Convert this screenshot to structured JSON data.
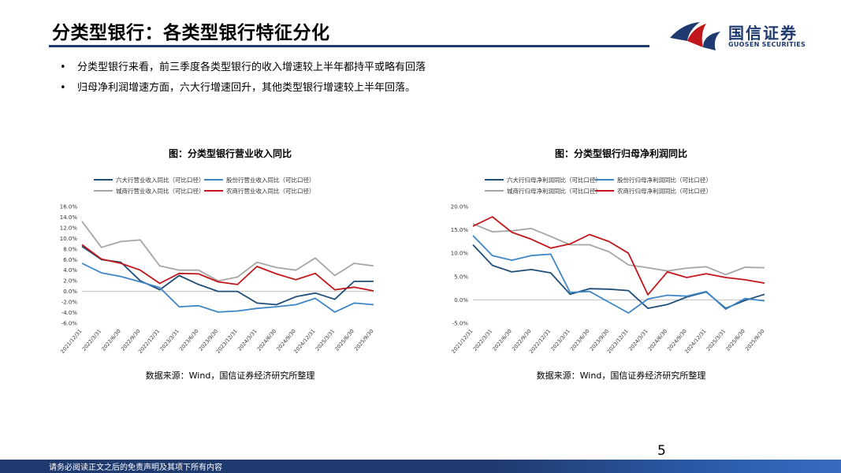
{
  "header": {
    "title": "分类型银行：各类型银行特征分化",
    "logo_cn": "国信证券",
    "logo_en": "GUOSEN SECURITIES"
  },
  "bullets": [
    "分类型银行来看，前三季度各类型银行的收入增速较上半年都持平或略有回落",
    "归母净利润增速方面，六大行增速回升，其他类型银行增速较上半年回落。"
  ],
  "colors": {
    "big6": "#1f4e79",
    "joint": "#3f86c6",
    "city": "#a6a6a6",
    "rural": "#c0161c",
    "brand": "#1f3a6e"
  },
  "chart_data": [
    {
      "type": "line",
      "title": "图：分类型银行营业收入同比",
      "source": "数据来源：Wind，国信证券经济研究所整理",
      "x": [
        "2021/12/31",
        "2022/3/31",
        "2022/6/30",
        "2022/9/30",
        "2022/12/31",
        "2023/3/31",
        "2023/6/30",
        "2023/9/30",
        "2023/12/31",
        "2024/3/31",
        "2024/6/30",
        "2024/9/30",
        "2024/12/31",
        "2025/3/31",
        "2025/6/30",
        "2025/9/30"
      ],
      "y_ticks": [
        "16.0%",
        "14.0%",
        "12.0%",
        "10.0%",
        "8.0%",
        "6.0%",
        "4.0%",
        "2.0%",
        "0.0%",
        "-2.0%",
        "-4.0%",
        "-6.0%"
      ],
      "ylim": [
        -6,
        16
      ],
      "series": [
        {
          "name": "六大行营业收入同比（可比口径）",
          "color_key": "big6",
          "values": [
            8.5,
            6.0,
            5.5,
            2.0,
            0.3,
            3.0,
            1.3,
            0.0,
            0.0,
            -2.2,
            -2.5,
            -1.0,
            -0.3,
            -1.5,
            1.9,
            1.9
          ]
        },
        {
          "name": "股份行营业收入同比（可比口径）",
          "color_key": "joint",
          "values": [
            5.3,
            3.5,
            2.8,
            1.8,
            0.7,
            -2.9,
            -2.7,
            -3.9,
            -3.7,
            -3.2,
            -2.9,
            -2.5,
            -1.3,
            -3.9,
            -2.2,
            -2.5
          ]
        },
        {
          "name": "城商行营业收入同比（可比口径）",
          "color_key": "city",
          "values": [
            13.2,
            8.3,
            9.4,
            9.7,
            4.8,
            4.0,
            4.0,
            2.0,
            2.7,
            5.5,
            4.5,
            4.0,
            6.3,
            3.0,
            5.3,
            4.8
          ]
        },
        {
          "name": "农商行营业收入同比（可比口径）",
          "color_key": "rural",
          "values": [
            8.8,
            6.1,
            5.3,
            4.0,
            1.5,
            3.4,
            3.3,
            1.8,
            1.3,
            4.7,
            3.3,
            2.2,
            3.4,
            0.3,
            0.8,
            0.1
          ]
        }
      ]
    },
    {
      "type": "line",
      "title": "图：分类型银行归母净利润同比",
      "source": "数据来源：Wind，国信证券经济研究所整理",
      "x": [
        "2021/12/31",
        "2022/3/31",
        "2022/6/30",
        "2022/9/30",
        "2022/12/31",
        "2023/3/31",
        "2023/6/30",
        "2023/9/30",
        "2023/12/31",
        "2024/3/31",
        "2024/6/30",
        "2024/9/30",
        "2024/12/31",
        "2025/3/31",
        "2025/6/30",
        "2025/9/30"
      ],
      "y_ticks": [
        "20.0%",
        "15.0%",
        "10.0%",
        "5.0%",
        "0.0%",
        "-5.0%"
      ],
      "ylim": [
        -5,
        20
      ],
      "series": [
        {
          "name": "六大行归母净利润同比（可比口径）",
          "color_key": "big6",
          "values": [
            11.8,
            7.4,
            6.0,
            6.5,
            5.8,
            1.2,
            2.4,
            2.3,
            2.0,
            -1.8,
            -1.0,
            0.6,
            1.7,
            -1.8,
            -0.1,
            1.2
          ]
        },
        {
          "name": "股份行归母净利润同比（可比口径）",
          "color_key": "joint",
          "values": [
            13.8,
            9.5,
            8.5,
            9.5,
            9.8,
            1.6,
            1.8,
            -0.5,
            -2.8,
            0.2,
            1.0,
            0.8,
            1.8,
            -2.0,
            0.3,
            -0.2
          ]
        },
        {
          "name": "城商行归母净利润同比（可比口径）",
          "color_key": "city",
          "values": [
            16.3,
            14.6,
            14.8,
            15.3,
            13.6,
            11.8,
            11.8,
            10.3,
            7.5,
            6.9,
            6.2,
            6.8,
            7.1,
            5.4,
            7.0,
            6.9
          ]
        },
        {
          "name": "农商行归母净利润同比（可比口径）",
          "color_key": "rural",
          "values": [
            15.8,
            17.8,
            14.5,
            13.0,
            11.1,
            12.0,
            14.0,
            12.5,
            10.0,
            1.1,
            6.0,
            4.8,
            5.6,
            4.8,
            4.3,
            3.6
          ]
        }
      ]
    }
  ],
  "page_number": "5",
  "footer": "请务必阅读正文之后的免责声明及其项下所有内容"
}
